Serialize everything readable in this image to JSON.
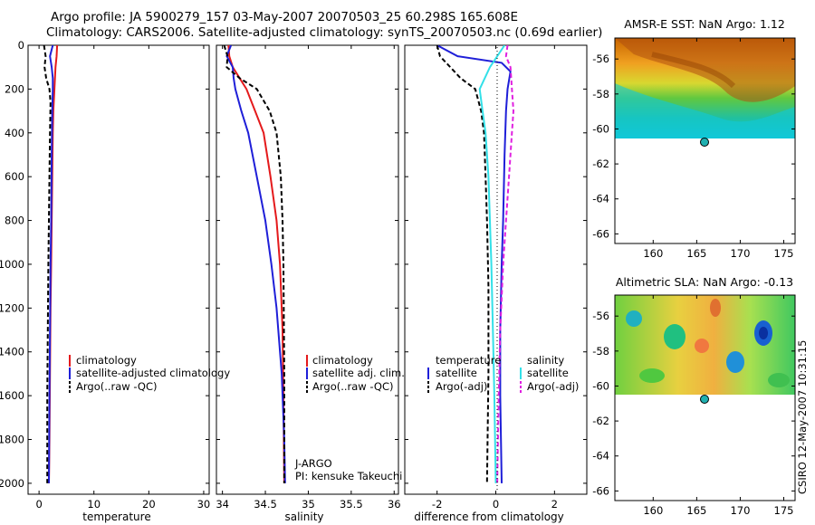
{
  "header": {
    "line1": "Argo profile: JA 5900279_157 03-May-2007 20070503_25 60.298S 165.608E",
    "line2": "Climatology: CARS2006. Satellite-adjusted climatology: synTS_20070503.nc (0.69d earlier)"
  },
  "footer_stamp": "CSIRO 12-May-2007 10:31:15",
  "colors": {
    "red": "#e41a1c",
    "blue": "#1f1fd8",
    "black": "#000000",
    "cyan": "#33e0e8",
    "magenta": "#e020e0"
  },
  "panels": {
    "temperature": {
      "xlabel": "temperature",
      "xticks": [
        "0",
        "10",
        "20",
        "30"
      ],
      "legend": [
        "climatology",
        "satellite-adjusted climatology",
        "Argo(..raw -QC)"
      ]
    },
    "salinity": {
      "xlabel": "salinity",
      "xticks": [
        "34",
        "34.5",
        "35",
        "35.5",
        "36"
      ],
      "legend": [
        "climatology",
        "satellite adj. clim.",
        "Argo(..raw -QC)"
      ],
      "annot1": "J-ARGO",
      "annot2": "PI: kensuke Takeuchi"
    },
    "difference": {
      "xlabel": "difference from climatology",
      "xticks": [
        "-2",
        "0",
        "2"
      ],
      "legend_t_title": "temperature",
      "legend_t": [
        "satellite",
        "Argo(-adj)"
      ],
      "legend_s_title": "salinity",
      "legend_s": [
        "satellite",
        "Argo(-adj)"
      ]
    },
    "depth_ticks": [
      "0",
      "200",
      "400",
      "600",
      "800",
      "1000",
      "1200",
      "1400",
      "1600",
      "1800",
      "2000"
    ]
  },
  "maps": {
    "sst": {
      "title": "AMSR-E SST: NaN Argo: 1.12"
    },
    "sla": {
      "title": "Altimetric SLA: NaN Argo: -0.13"
    },
    "lat_ticks": [
      "-56",
      "-58",
      "-60",
      "-62",
      "-64",
      "-66"
    ],
    "lon_ticks": [
      "160",
      "165",
      "170",
      "175"
    ],
    "marker": {
      "lon": 165.608,
      "lat": -60.298
    }
  },
  "chart_data": [
    {
      "type": "line",
      "panel": "temperature",
      "ylabel": "",
      "xlabel": "temperature",
      "xlim": [
        -2,
        31
      ],
      "ylim": [
        2050,
        0
      ],
      "y_reversed": true,
      "series": [
        {
          "name": "climatology",
          "color": "#e41a1c",
          "x": [
            3.3,
            3.2,
            3.0,
            2.9,
            2.8,
            2.6,
            2.5,
            2.4,
            2.3,
            2.2,
            2.1,
            2.0,
            1.9,
            1.8
          ],
          "y": [
            0,
            50,
            100,
            150,
            200,
            300,
            400,
            600,
            800,
            1000,
            1200,
            1500,
            1800,
            2000
          ]
        },
        {
          "name": "satellite-adjusted climatology",
          "color": "#1f1fd8",
          "x": [
            2.5,
            2.0,
            2.3,
            2.5,
            2.5,
            2.4,
            2.3,
            2.2,
            2.1,
            2.0,
            1.9,
            1.8
          ],
          "y": [
            0,
            50,
            100,
            150,
            200,
            300,
            500,
            800,
            1000,
            1300,
            1600,
            2000
          ]
        },
        {
          "name": "Argo(..raw -QC)",
          "color": "#000000",
          "x": [
            0.9,
            1.2,
            1.0,
            1.3,
            1.9,
            2.1,
            2.0,
            1.9,
            1.8,
            1.7,
            1.6,
            1.5,
            1.5
          ],
          "y": [
            0,
            50,
            100,
            150,
            200,
            260,
            400,
            600,
            800,
            1000,
            1300,
            1600,
            2000
          ]
        }
      ]
    },
    {
      "type": "line",
      "panel": "salinity",
      "xlabel": "salinity",
      "xlim": [
        33.93,
        36.05
      ],
      "ylim": [
        2050,
        0
      ],
      "y_reversed": true,
      "series": [
        {
          "name": "climatology",
          "color": "#e41a1c",
          "x": [
            34.07,
            34.08,
            34.12,
            34.2,
            34.28,
            34.38,
            34.48,
            34.56,
            34.63,
            34.67,
            34.7,
            34.71,
            34.72
          ],
          "y": [
            0,
            50,
            100,
            150,
            200,
            300,
            400,
            600,
            800,
            1000,
            1300,
            1600,
            2000
          ]
        },
        {
          "name": "satellite adj. clim.",
          "color": "#1f1fd8",
          "x": [
            34.1,
            34.05,
            34.12,
            34.13,
            34.15,
            34.22,
            34.3,
            34.4,
            34.5,
            34.57,
            34.63,
            34.69,
            34.72,
            34.73
          ],
          "y": [
            0,
            50,
            100,
            150,
            200,
            300,
            400,
            600,
            800,
            1000,
            1200,
            1500,
            1800,
            2000
          ]
        },
        {
          "name": "Argo(..raw -QC)",
          "color": "#000000",
          "x": [
            34.02,
            34.06,
            34.05,
            34.2,
            34.4,
            34.55,
            34.63,
            34.68,
            34.7,
            34.71,
            34.72,
            34.72
          ],
          "y": [
            0,
            50,
            100,
            150,
            200,
            300,
            400,
            600,
            800,
            1000,
            1500,
            2000
          ]
        }
      ]
    },
    {
      "type": "line",
      "panel": "difference",
      "xlabel": "difference from climatology",
      "xlim": [
        -3.1,
        3.1
      ],
      "ylim": [
        2050,
        0
      ],
      "y_reversed": true,
      "series": [
        {
          "name": "temperature satellite",
          "color": "#1f1fd8",
          "x": [
            -2.0,
            -1.3,
            0.2,
            0.5,
            0.4,
            0.35,
            0.3,
            0.25,
            0.2,
            0.15,
            0.15,
            0.2
          ],
          "y": [
            0,
            50,
            80,
            120,
            200,
            300,
            500,
            800,
            1000,
            1300,
            1600,
            2000
          ]
        },
        {
          "name": "temperature Argo(-adj)",
          "color": "#000000",
          "x": [
            -2.0,
            -1.9,
            -1.2,
            -0.7,
            -0.5,
            -0.4,
            -0.35,
            -0.3,
            -0.25,
            -0.25,
            -0.3
          ],
          "y": [
            0,
            50,
            150,
            200,
            300,
            400,
            600,
            800,
            1100,
            1500,
            2000
          ]
        },
        {
          "name": "salinity satellite",
          "color": "#33e0e8",
          "x": [
            0.3,
            -0.2,
            -0.55,
            -0.45,
            -0.35,
            -0.25,
            -0.2,
            -0.15,
            -0.1,
            -0.05,
            0.0
          ],
          "y": [
            0,
            100,
            200,
            300,
            400,
            600,
            800,
            1000,
            1300,
            1600,
            2000
          ]
        },
        {
          "name": "salinity Argo(-adj)",
          "color": "#e020e0",
          "x": [
            0.4,
            0.35,
            0.5,
            0.55,
            0.6,
            0.55,
            0.45,
            0.35,
            0.25,
            0.15,
            0.1,
            0.05
          ],
          "y": [
            0,
            50,
            100,
            200,
            300,
            400,
            600,
            800,
            1000,
            1300,
            1600,
            2000
          ]
        }
      ]
    }
  ]
}
